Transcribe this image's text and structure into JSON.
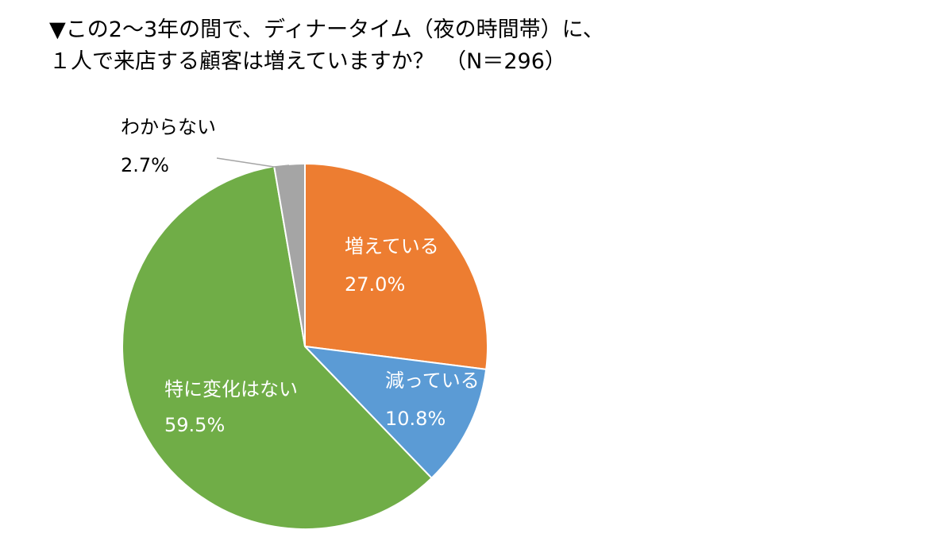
{
  "title": {
    "line1": "▼この2～3年の間で、ディナータイム（夜の時間帯）に、",
    "line2": "１人で来店する顧客は増えていますか？　（N＝296）"
  },
  "chart_data": {
    "type": "pie",
    "start_angle_deg": 0,
    "direction": "clockwise",
    "slices": [
      {
        "label": "増えている",
        "value": 27.0,
        "value_text": "27.0%",
        "color": "#ED7D31",
        "label_color": "#FFFFFF"
      },
      {
        "label": "減っている",
        "value": 10.8,
        "value_text": "10.8%",
        "color": "#5B9BD5",
        "label_color": "#FFFFFF"
      },
      {
        "label": "特に変化はない",
        "value": 59.5,
        "value_text": "59.5%",
        "color": "#70AD47",
        "label_color": "#FFFFFF"
      },
      {
        "label": "わからない",
        "value": 2.7,
        "value_text": "2.7%",
        "color": "#A5A5A5",
        "label_color": "#000000"
      }
    ],
    "border_color": "#FFFFFF"
  }
}
